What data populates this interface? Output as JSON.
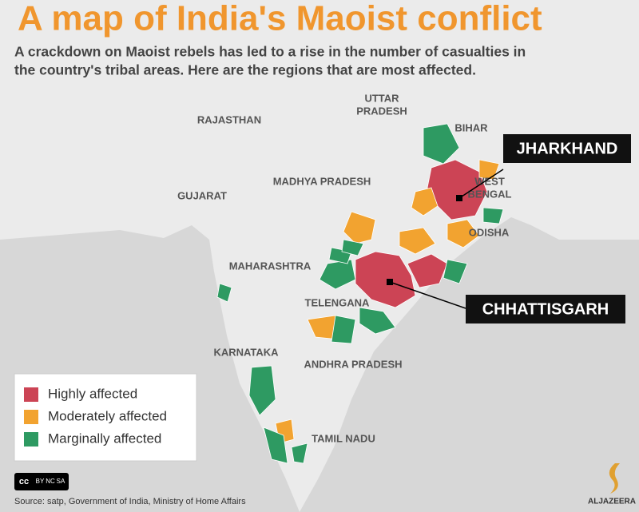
{
  "header": {
    "title": "A map of India's Maoist conflict",
    "subtitle": [
      "A crackdown on Maoist rebels has led to a rise in the number of casualties in",
      "the country's tribal areas. Here are the regions that are most affected."
    ]
  },
  "regions": [
    {
      "lines": [
        "UTTAR",
        "PRADESH"
      ]
    },
    {
      "lines": [
        "RAJASTHAN"
      ]
    },
    {
      "lines": [
        "BIHAR"
      ]
    },
    {
      "lines": [
        "MADHYA PRADESH"
      ]
    },
    {
      "lines": [
        "WEST",
        "BENGAL"
      ]
    },
    {
      "lines": [
        "GUJARAT"
      ]
    },
    {
      "lines": [
        "ODISHA"
      ]
    },
    {
      "lines": [
        "MAHARASHTRA"
      ]
    },
    {
      "lines": [
        "TELENGANA"
      ]
    },
    {
      "lines": [
        "KARNATAKA"
      ]
    },
    {
      "lines": [
        "ANDHRA PRADESH"
      ]
    },
    {
      "lines": [
        "TAMIL NADU"
      ]
    }
  ],
  "callouts": [
    "JHARKHAND",
    "CHHATTISGARH"
  ],
  "legend": [
    {
      "label": "Highly affected",
      "color": "#cc4455"
    },
    {
      "label": "Moderately affected",
      "color": "#f2a330"
    },
    {
      "label": "Marginally affected",
      "color": "#2e9a62"
    }
  ],
  "license": [
    "cc",
    "BY",
    "NC",
    "SA"
  ],
  "source": "Source: satp, Government of India, Ministry of Home Affairs",
  "logo": "ALJAZEERA"
}
